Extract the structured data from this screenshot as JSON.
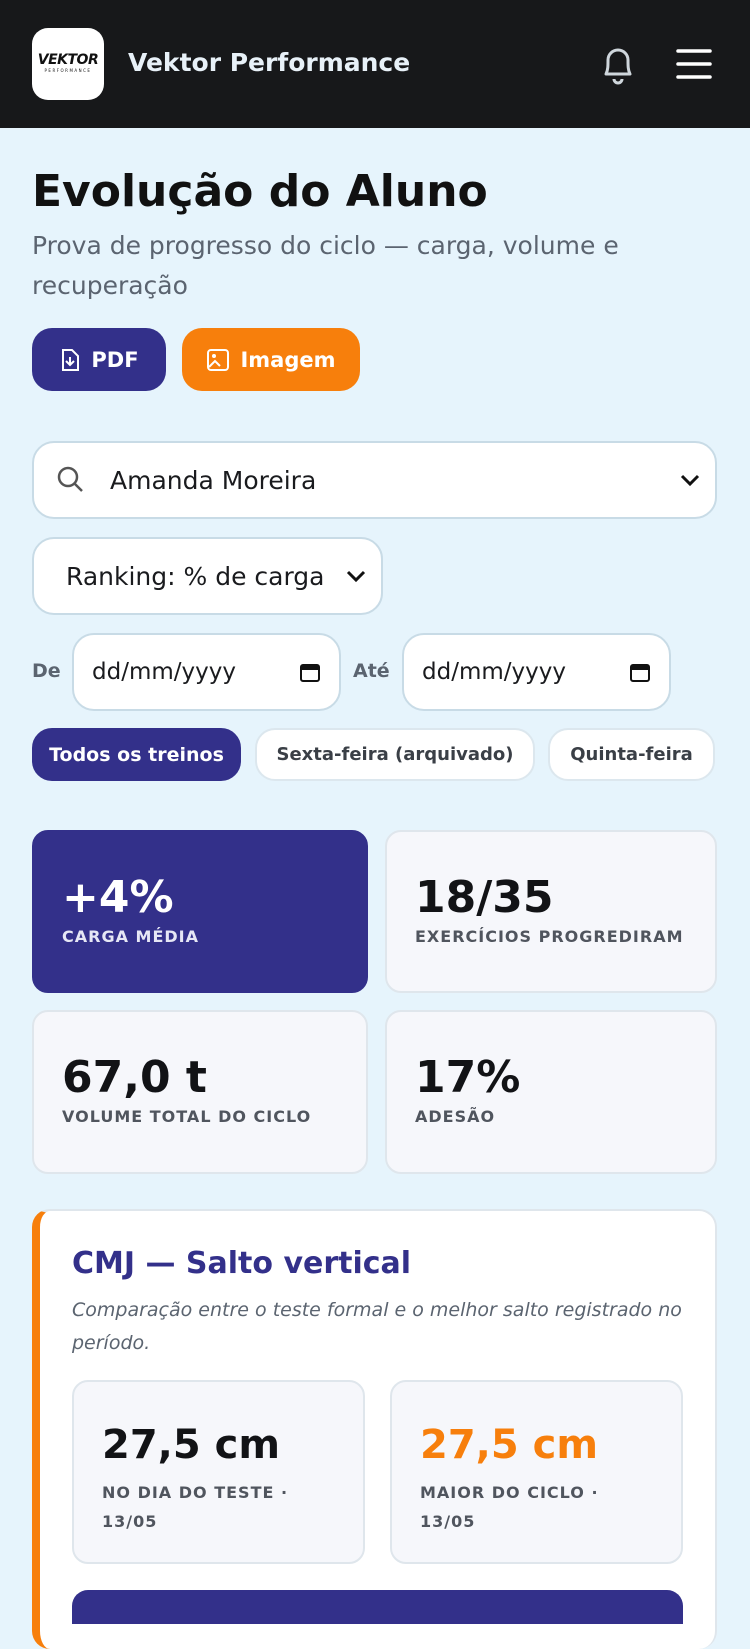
{
  "header": {
    "logo": {
      "main": "VEKTOR",
      "sub": "PERFORMANCE"
    },
    "brand": "Vektor Performance"
  },
  "page": {
    "title": "Evolução do Aluno",
    "subtitle": "Prova de progresso do ciclo — carga, volume e recuperação",
    "buttons": [
      "PDF",
      "Imagem"
    ]
  },
  "filters": {
    "student": "Amanda Moreira",
    "ranking": "Ranking: % de carga",
    "from_label": "De",
    "from_placeholder": "dd/mm/yyyy",
    "to_label": "Até",
    "to_placeholder": "dd/mm/yyyy"
  },
  "tabs": [
    "Todos os treinos",
    "Sexta-feira (arquivado)",
    "Quinta-feira"
  ],
  "stats": [
    {
      "value": "+4%",
      "label": "CARGA MÉDIA"
    },
    {
      "value": "18/35",
      "label": "EXERCÍCIOS PROGREDIRAM"
    },
    {
      "value": "67,0 t",
      "label": "VOLUME TOTAL DO CICLO"
    },
    {
      "value": "17%",
      "label": "ADESÃO"
    }
  ],
  "cmj": {
    "title": "CMJ — Salto vertical",
    "description": "Comparação entre o teste formal e o melhor salto registrado no período.",
    "boxes": [
      {
        "value": "27,5 cm",
        "label": "NO DIA DO TESTE · 13/05"
      },
      {
        "value": "27,5 cm",
        "label": "MAIOR DO CICLO · 13/05"
      }
    ]
  }
}
